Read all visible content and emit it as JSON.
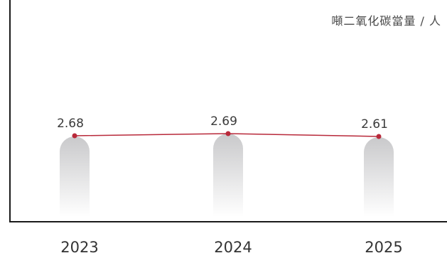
{
  "chart_data": {
    "type": "line",
    "unit_label": "噸二氧化碳當量 / 人",
    "categories": [
      "2023",
      "2024",
      "2025"
    ],
    "series": [
      {
        "values": [
          2.68,
          2.69,
          2.61
        ]
      }
    ],
    "colors": {
      "line": "#b8293a",
      "bar_top": "#c9c9cb",
      "bar_bottom": "#ffffff",
      "axis": "#1a1a1a"
    }
  }
}
